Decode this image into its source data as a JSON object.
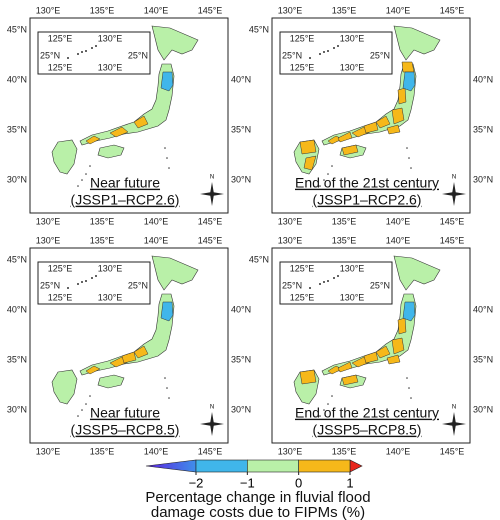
{
  "panels": [
    {
      "title_lines": [
        "Near future",
        "(JSSP1–RCP2.6)"
      ]
    },
    {
      "title_lines": [
        "End of the 21st century",
        "(JSSP1–RCP2.6)"
      ]
    },
    {
      "title_lines": [
        "Near future",
        "(JSSP5–RCP8.5)"
      ]
    },
    {
      "title_lines": [
        "End of the 21st century",
        "(JSSP5–RCP8.5)"
      ]
    }
  ],
  "lon_labels": [
    "130°E",
    "135°E",
    "140°E",
    "145°E"
  ],
  "lat_labels": [
    "45°N",
    "40°N",
    "35°N",
    "30°N"
  ],
  "inset": {
    "lon_labels": [
      "125°E",
      "130°E"
    ],
    "lat_label": "25°N"
  },
  "compass_label": "N",
  "colorbar": {
    "ticks": [
      {
        "value": -2,
        "label": "−2"
      },
      {
        "value": -1,
        "label": "−1"
      },
      0,
      1
    ],
    "colors": [
      "#40b6ea",
      "#b9f0a8",
      "#f6b81a"
    ],
    "under_colors": [
      "#5b21e0",
      "#3f8fea"
    ],
    "over_color": "#e8261c",
    "label_lines": [
      "Percentage change in fluvial flood",
      "damage costs due to FIPMs (%)"
    ]
  }
}
